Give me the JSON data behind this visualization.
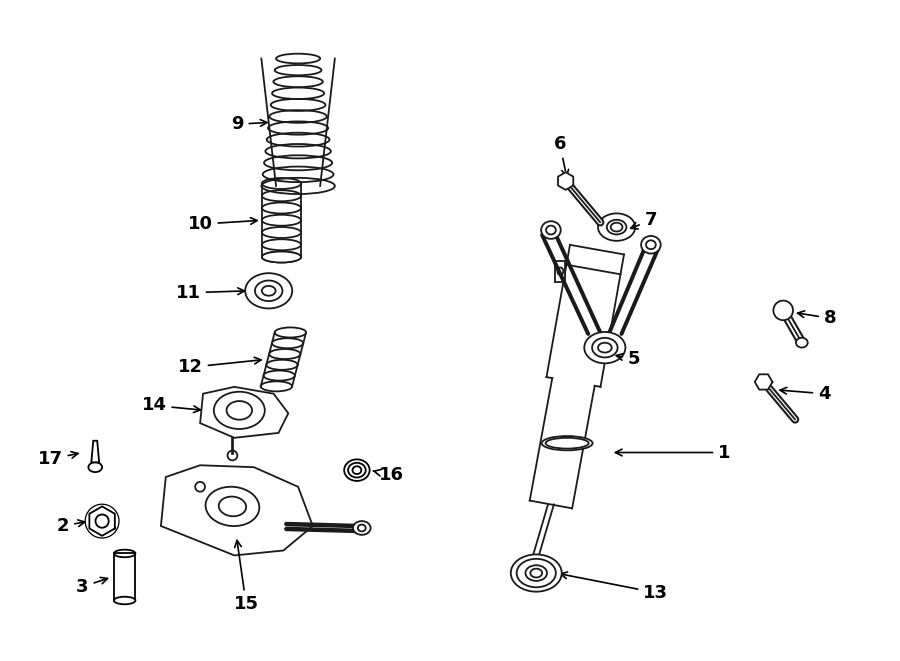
{
  "bg_color": "#ffffff",
  "line_color": "#1a1a1a",
  "label_color": "#000000",
  "figsize": [
    9.0,
    6.61
  ],
  "dpi": 100
}
